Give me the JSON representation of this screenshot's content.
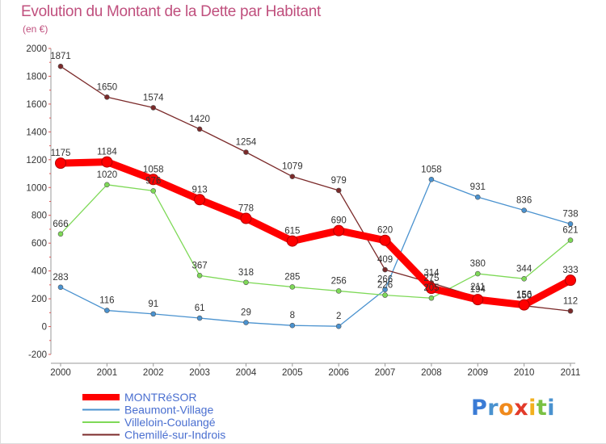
{
  "chart_data": {
    "type": "line",
    "title": "Evolution du Montant de la Dette par Habitant",
    "subtitle": "(en €)",
    "x": [
      "2000",
      "2001",
      "2002",
      "2003",
      "2004",
      "2005",
      "2006",
      "2007",
      "2008",
      "2009",
      "2010",
      "2011"
    ],
    "ylim": [
      -200,
      2000
    ],
    "yticks": [
      -200,
      0,
      200,
      400,
      600,
      800,
      1000,
      1200,
      1400,
      1600,
      1800,
      2000
    ],
    "grid": false,
    "legend_position": "bottom-left",
    "series": [
      {
        "name": "MONTRéSOR",
        "color": "#ff0000",
        "values": [
          1175,
          1184,
          1058,
          913,
          778,
          615,
          690,
          620,
          275,
          194,
          156,
          333
        ]
      },
      {
        "name": "Beaumont-Village",
        "color": "#4a92cf",
        "values": [
          283,
          116,
          91,
          61,
          29,
          8,
          2,
          266,
          1058,
          931,
          836,
          738
        ]
      },
      {
        "name": "Villeloin-Coulangé",
        "color": "#7ed957",
        "values": [
          666,
          1020,
          976,
          367,
          318,
          285,
          256,
          226,
          205,
          380,
          344,
          621
        ]
      },
      {
        "name": "Chemillé-sur-Indrois",
        "color": "#7b2a2a",
        "values": [
          1871,
          1650,
          1574,
          1420,
          1254,
          1079,
          979,
          409,
          314,
          211,
          150,
          112
        ]
      }
    ]
  },
  "logo": {
    "letters": [
      "P",
      "r",
      "o",
      "x",
      "i",
      "t",
      "i"
    ],
    "colors": [
      "#3a7bd5",
      "#4a92cf",
      "#f08a1c",
      "#e23a2a",
      "#f2b01e",
      "#7ac143",
      "#4a92cf"
    ]
  }
}
